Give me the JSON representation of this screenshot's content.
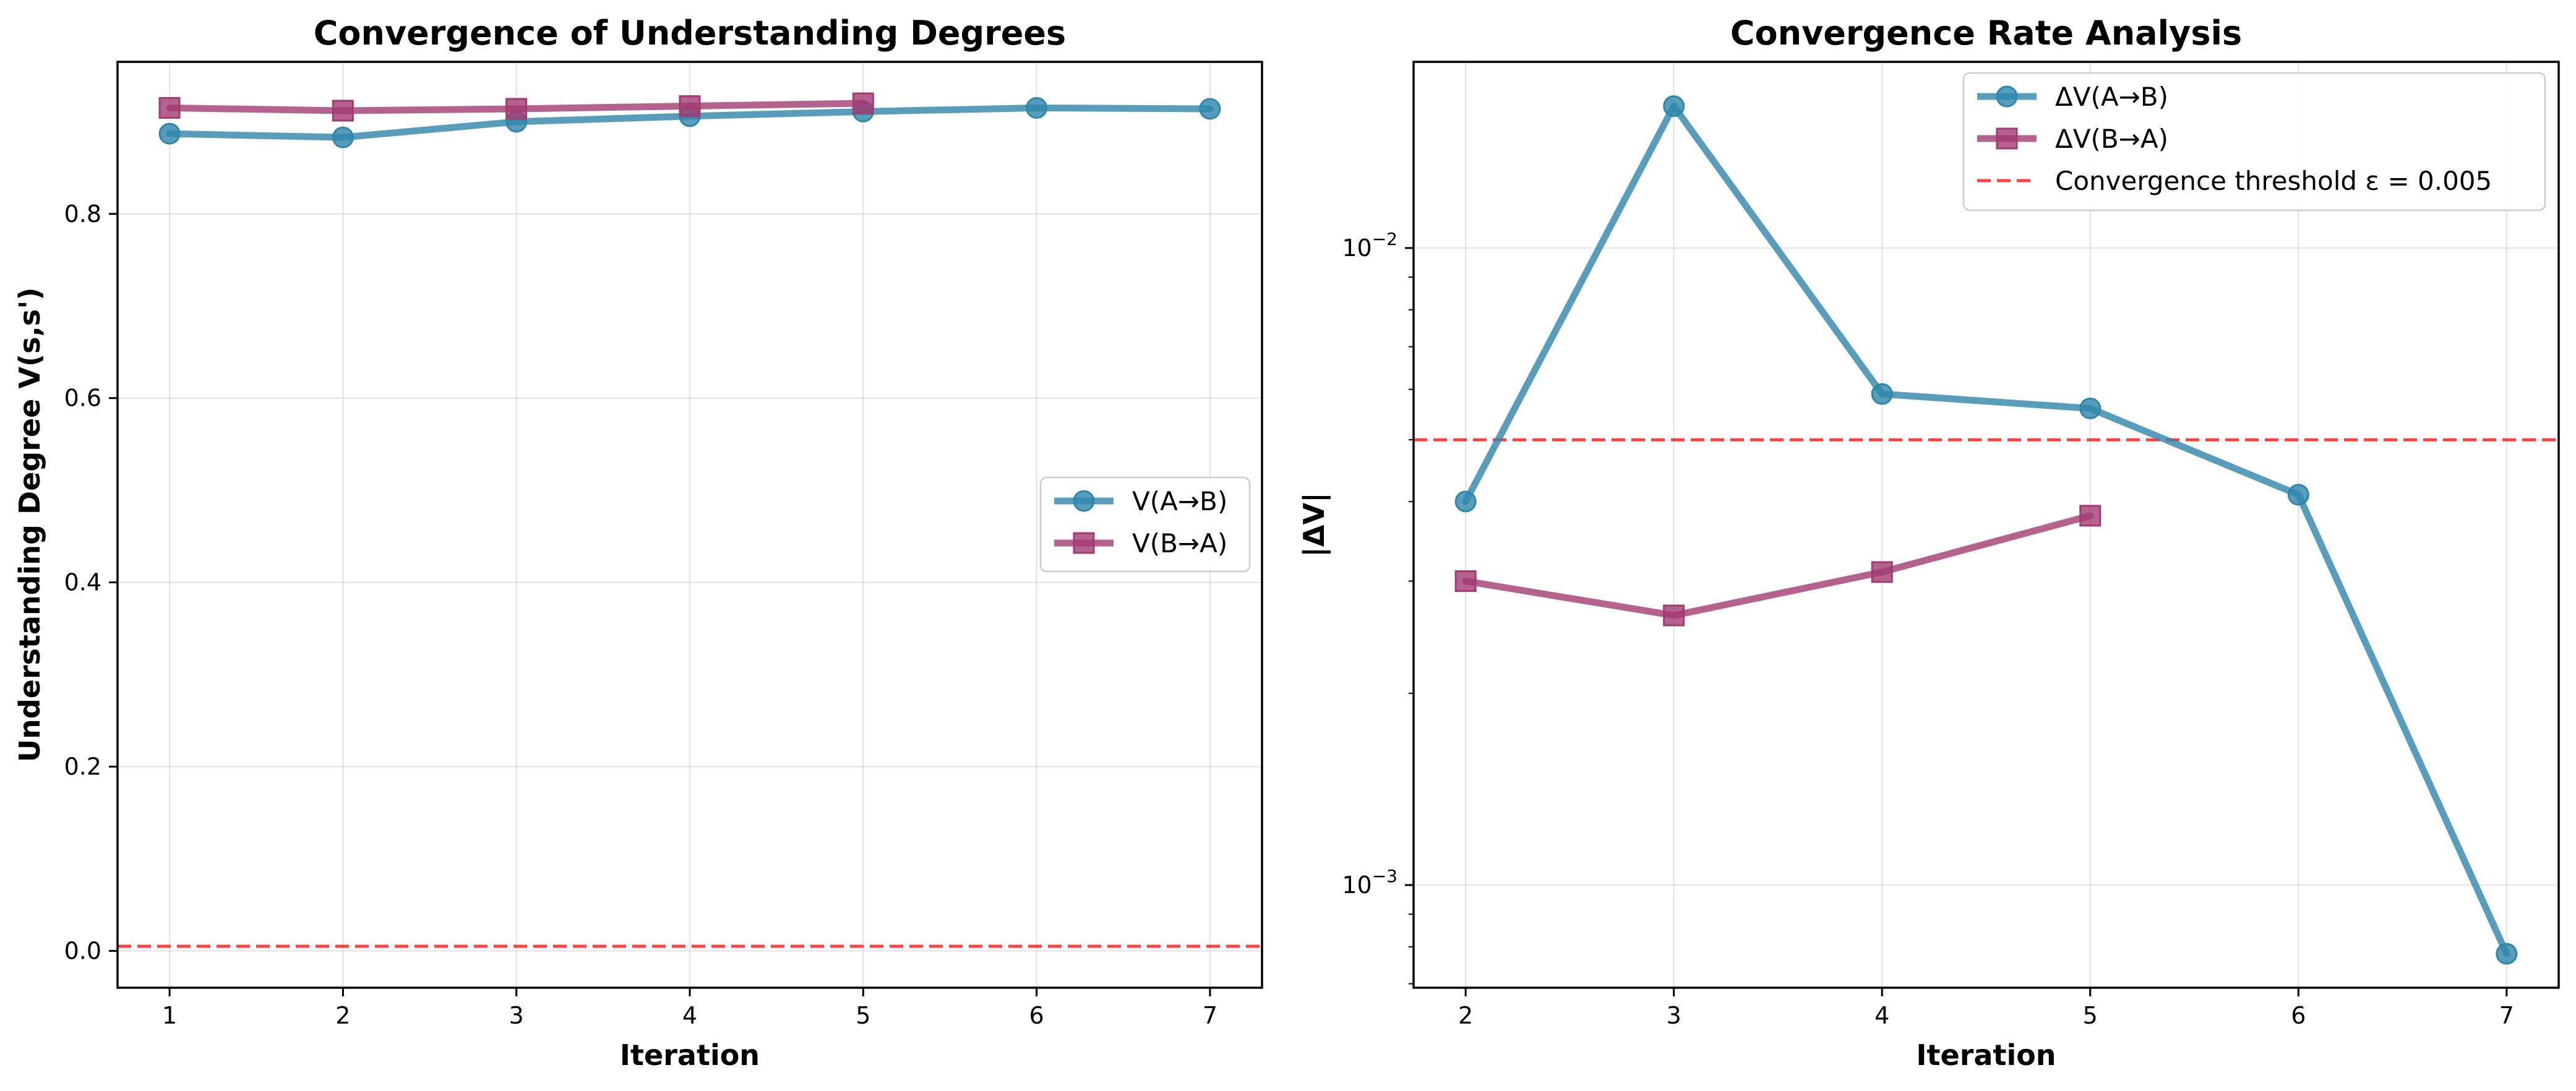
{
  "colors": {
    "series_a": "#2E86AB",
    "series_b": "#A23B72",
    "threshold": "#FF0000"
  },
  "chart_data": [
    {
      "type": "line",
      "title": "Convergence of Understanding Degrees",
      "xlabel": "Iteration",
      "ylabel": "Understanding Degree V(s,s')",
      "xlim": [
        0.7,
        7.3
      ],
      "ylim": [
        -0.04,
        0.965
      ],
      "xticks": [
        1,
        2,
        3,
        4,
        5,
        6,
        7
      ],
      "xtick_labels": [
        "1",
        "2",
        "3",
        "4",
        "5",
        "6",
        "7"
      ],
      "yticks": [
        0.0,
        0.2,
        0.4,
        0.6,
        0.8
      ],
      "ytick_labels": [
        "0.0",
        "0.2",
        "0.4",
        "0.6",
        "0.8"
      ],
      "yscale": "linear",
      "grid": true,
      "legend": "center-right",
      "series": [
        {
          "name": "V(A→B)",
          "marker": "circle",
          "x": [
            1,
            2,
            3,
            4,
            5,
            6,
            7
          ],
          "values": [
            0.887,
            0.883,
            0.9,
            0.906,
            0.911,
            0.915,
            0.914
          ]
        },
        {
          "name": "V(B→A)",
          "marker": "square",
          "x": [
            1,
            2,
            3,
            4,
            5
          ],
          "values": [
            0.915,
            0.912,
            0.914,
            0.917,
            0.92
          ]
        }
      ],
      "threshold": {
        "value": 0.005
      }
    },
    {
      "type": "line",
      "title": "Convergence Rate Analysis",
      "xlabel": "Iteration",
      "ylabel": "|ΔV|",
      "xlim": [
        1.75,
        7.25
      ],
      "ylim": [
        0.00069,
        0.0196
      ],
      "xticks": [
        2,
        3,
        4,
        5,
        6,
        7
      ],
      "xtick_labels": [
        "2",
        "3",
        "4",
        "5",
        "6",
        "7"
      ],
      "yticks_major": [
        0.001,
        0.01
      ],
      "ytick_labels_major": [
        {
          "base": "10",
          "exp": "−3"
        },
        {
          "base": "10",
          "exp": "−2"
        }
      ],
      "yscale": "log",
      "grid": true,
      "legend": "top-right",
      "series": [
        {
          "name": "ΔV(A→B)",
          "marker": "circle",
          "x": [
            2,
            3,
            4,
            5,
            6,
            7
          ],
          "values": [
            0.004,
            0.0167,
            0.0059,
            0.0056,
            0.0041,
            0.00078
          ]
        },
        {
          "name": "ΔV(B→A)",
          "marker": "square",
          "x": [
            2,
            3,
            4,
            5
          ],
          "values": [
            0.003,
            0.00265,
            0.0031,
            0.0038
          ]
        }
      ],
      "threshold": {
        "label": "Convergence threshold ε = 0.005",
        "value": 0.005
      }
    }
  ]
}
